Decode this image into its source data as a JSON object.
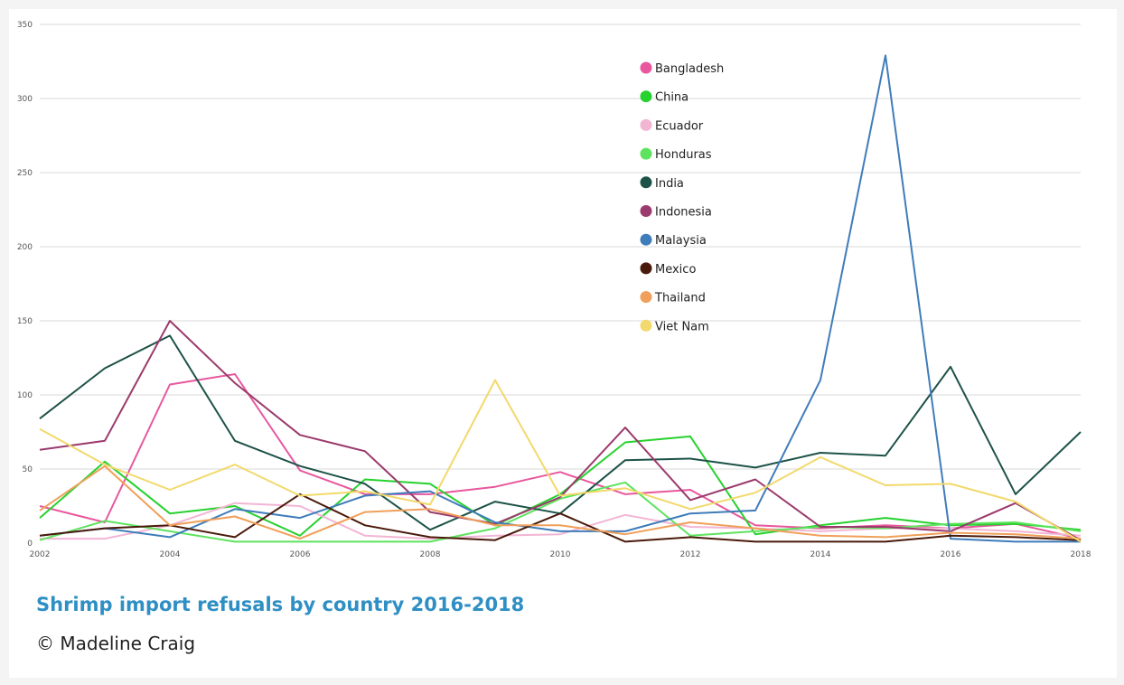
{
  "caption": {
    "title": "Shrimp import refusals by country 2016-2018",
    "credit": "© Madeline Craig"
  },
  "chart_data": {
    "type": "line",
    "title": "Shrimp import refusals by country 2016-2018",
    "xlabel": "",
    "ylabel": "",
    "grid": true,
    "legend_position": "top-center",
    "x": [
      2002,
      2003,
      2004,
      2005,
      2006,
      2007,
      2008,
      2009,
      2010,
      2011,
      2012,
      2013,
      2014,
      2015,
      2016,
      2017,
      2018
    ],
    "x_ticks": [
      "2002",
      "2004",
      "2006",
      "2008",
      "2010",
      "2012",
      "2014",
      "2016",
      "2018"
    ],
    "ylim": [
      0,
      350
    ],
    "y_ticks": [
      "0",
      "50",
      "100",
      "150",
      "200",
      "250",
      "300",
      "350"
    ],
    "series": [
      {
        "name": "Bangladesh",
        "color": "#e8579e",
        "values": [
          25,
          14,
          107,
          114,
          49,
          33,
          33,
          38,
          48,
          33,
          36,
          12,
          10,
          12,
          10,
          13,
          3
        ]
      },
      {
        "name": "China",
        "color": "#27d12e",
        "values": [
          17,
          55,
          20,
          25,
          5,
          43,
          40,
          12,
          33,
          68,
          72,
          6,
          12,
          17,
          12,
          13,
          9
        ]
      },
      {
        "name": "Ecuador",
        "color": "#f2b5d4",
        "values": [
          3,
          3,
          12,
          27,
          25,
          5,
          3,
          5,
          6,
          19,
          11,
          10,
          8,
          10,
          10,
          8,
          5
        ]
      },
      {
        "name": "Honduras",
        "color": "#5ee35e",
        "values": [
          2,
          15,
          8,
          1,
          1,
          1,
          1,
          10,
          30,
          41,
          5,
          8,
          11,
          10,
          13,
          14,
          8
        ]
      },
      {
        "name": "India",
        "color": "#1d5248",
        "values": [
          84,
          118,
          140,
          69,
          52,
          40,
          9,
          28,
          20,
          56,
          57,
          51,
          61,
          59,
          119,
          33,
          75
        ]
      },
      {
        "name": "Indonesia",
        "color": "#9b3a6c",
        "values": [
          63,
          69,
          150,
          108,
          73,
          62,
          21,
          13,
          31,
          78,
          29,
          43,
          11,
          11,
          8,
          27,
          2
        ]
      },
      {
        "name": "Malaysia",
        "color": "#3f7cba",
        "values": [
          5,
          10,
          4,
          23,
          17,
          32,
          35,
          14,
          8,
          8,
          20,
          22,
          110,
          329,
          3,
          1,
          1
        ]
      },
      {
        "name": "Mexico",
        "color": "#4a1a0a",
        "values": [
          5,
          10,
          12,
          4,
          33,
          12,
          4,
          2,
          20,
          1,
          4,
          1,
          1,
          1,
          5,
          4,
          2
        ]
      },
      {
        "name": "Thailand",
        "color": "#f0a05a",
        "values": [
          22,
          52,
          12,
          18,
          3,
          21,
          23,
          12,
          12,
          6,
          14,
          10,
          5,
          4,
          7,
          6,
          3
        ]
      },
      {
        "name": "Viet Nam",
        "color": "#f2d96b",
        "values": [
          77,
          53,
          36,
          53,
          32,
          35,
          26,
          110,
          32,
          37,
          23,
          34,
          58,
          39,
          40,
          28,
          1
        ]
      }
    ]
  }
}
